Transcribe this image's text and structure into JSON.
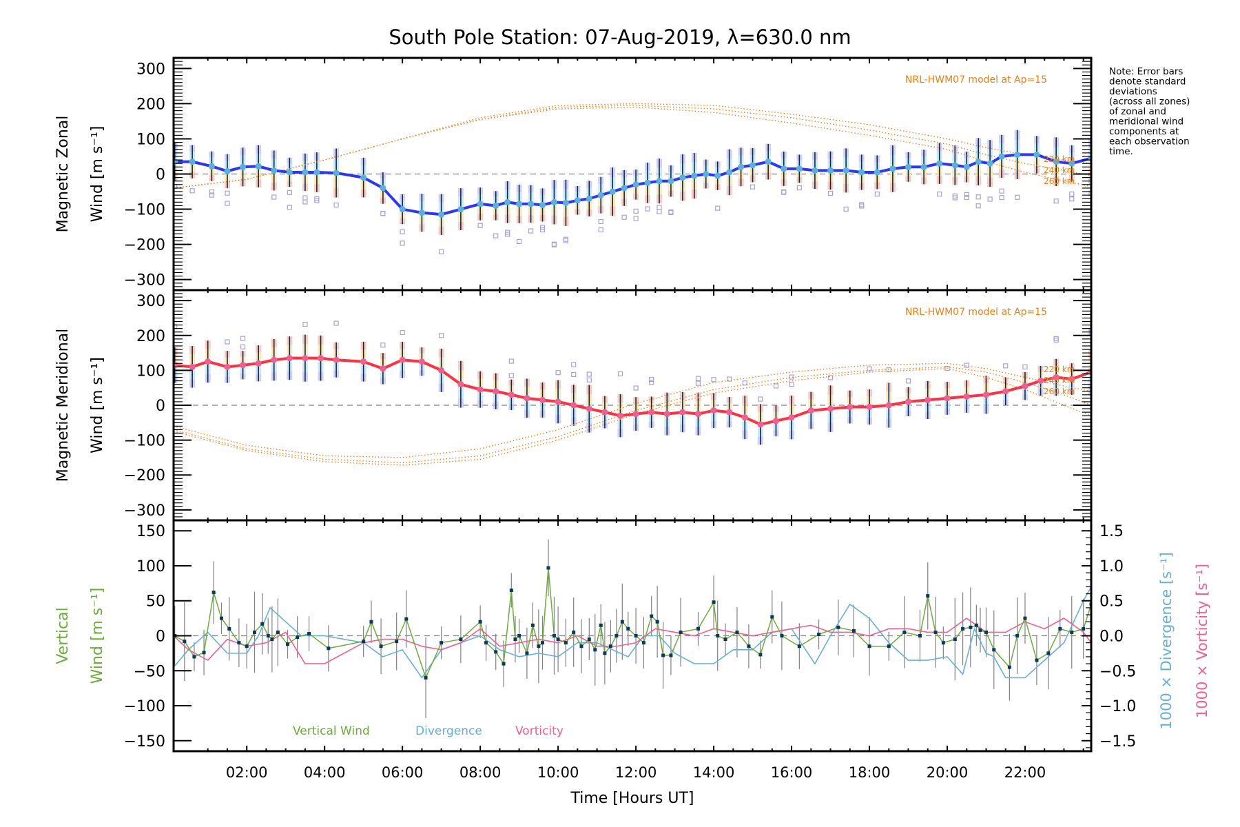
{
  "chart_data": [
    {
      "id": "zonal",
      "type": "line",
      "title": "South Pole Station: 07-Aug-2019, λ=630.0 nm",
      "ylabel_line1": "Magnetic Zonal",
      "ylabel_line2": "Wind [m s⁻¹]",
      "ylim": [
        -330,
        330
      ],
      "yticks": [
        300,
        200,
        100,
        0,
        -100,
        -200,
        -300
      ],
      "ytick_labels": [
        "300",
        "200",
        "100",
        "0",
        "−100",
        "−200",
        "−300"
      ],
      "model_label": "NRL-HWM07 model at Ap=15",
      "altitude_labels": [
        "220 km",
        "240 km",
        "260 km"
      ],
      "series": [
        {
          "name": "Zonal wind (mean)",
          "color": "#2b35ff",
          "x": [
            0.15,
            0.6,
            1.1,
            1.5,
            1.9,
            2.3,
            2.7,
            3.1,
            3.5,
            3.8,
            4.3,
            5.0,
            5.5,
            6.0,
            6.5,
            7.0,
            7.5,
            8.0,
            8.4,
            8.7,
            9.0,
            9.3,
            9.6,
            9.9,
            10.2,
            10.5,
            10.8,
            11.1,
            11.4,
            11.7,
            12.0,
            12.3,
            12.6,
            12.9,
            13.2,
            13.5,
            13.8,
            14.1,
            14.4,
            14.7,
            15.0,
            15.4,
            15.8,
            16.2,
            16.6,
            17.0,
            17.4,
            17.8,
            18.2,
            18.6,
            19.0,
            19.4,
            19.8,
            20.2,
            20.5,
            20.8,
            21.1,
            21.4,
            21.8,
            22.3,
            22.8,
            23.2,
            23.7
          ],
          "y": [
            35,
            35,
            22,
            8,
            20,
            22,
            10,
            5,
            5,
            5,
            3,
            -10,
            -40,
            -100,
            -110,
            -115,
            -100,
            -85,
            -90,
            -80,
            -85,
            -85,
            -88,
            -80,
            -82,
            -75,
            -70,
            -60,
            -50,
            -40,
            -30,
            -25,
            -20,
            -20,
            -10,
            -5,
            0,
            -5,
            5,
            20,
            25,
            35,
            15,
            15,
            10,
            10,
            10,
            5,
            5,
            15,
            20,
            20,
            30,
            25,
            20,
            35,
            30,
            50,
            55,
            55,
            35,
            30,
            45
          ]
        },
        {
          "name": "HWM07 220 km",
          "color": "#f07f10",
          "x": [
            0.12,
            2,
            4,
            6,
            8,
            10,
            12,
            14,
            16,
            18,
            20,
            21,
            22,
            23,
            23.7
          ],
          "y": [
            -40,
            -15,
            40,
            100,
            155,
            185,
            190,
            175,
            145,
            110,
            70,
            35,
            5,
            -20,
            -35
          ]
        },
        {
          "name": "HWM07 240 km",
          "color": "#f07f10",
          "x": [
            0.12,
            2,
            4,
            6,
            8,
            10,
            12,
            14,
            16,
            18,
            20,
            21,
            22,
            23,
            23.7
          ],
          "y": [
            -40,
            -15,
            40,
            100,
            155,
            190,
            195,
            185,
            160,
            125,
            85,
            55,
            30,
            10,
            -5
          ]
        },
        {
          "name": "HWM07 260 km",
          "color": "#f07f10",
          "x": [
            0.12,
            2,
            4,
            6,
            8,
            10,
            12,
            14,
            16,
            18,
            20,
            21,
            22,
            23,
            23.7
          ],
          "y": [
            -40,
            -15,
            40,
            100,
            160,
            195,
            200,
            195,
            170,
            140,
            100,
            75,
            55,
            40,
            30
          ]
        }
      ]
    },
    {
      "id": "meridional",
      "type": "line",
      "ylabel_line1": "Magnetic Meridional",
      "ylabel_line2": "Wind [m s⁻¹]",
      "ylim": [
        -330,
        330
      ],
      "yticks": [
        300,
        200,
        100,
        0,
        -100,
        -200,
        -300
      ],
      "ytick_labels": [
        "300",
        "200",
        "100",
        "0",
        "−100",
        "−200",
        "−300"
      ],
      "model_label": "NRL-HWM07 model at Ap=15",
      "altitude_labels": [
        "220 km",
        "240 km",
        "260 km"
      ],
      "series": [
        {
          "name": "Meridional wind (mean)",
          "color": "#ff3040",
          "x": [
            0.15,
            0.6,
            1.0,
            1.5,
            1.9,
            2.3,
            2.7,
            3.1,
            3.5,
            3.9,
            4.3,
            5.0,
            5.5,
            6.0,
            6.5,
            7.0,
            7.5,
            8.0,
            8.4,
            8.8,
            9.2,
            9.6,
            10.0,
            10.4,
            10.8,
            11.2,
            11.6,
            12.0,
            12.4,
            12.8,
            13.2,
            13.6,
            14.0,
            14.4,
            14.8,
            15.2,
            15.6,
            16.0,
            16.5,
            17.0,
            17.5,
            18.0,
            18.5,
            19.0,
            19.5,
            20.0,
            20.5,
            21.0,
            21.5,
            22.0,
            22.4,
            22.8,
            23.2,
            23.7
          ],
          "y": [
            115,
            110,
            125,
            110,
            115,
            120,
            130,
            135,
            135,
            135,
            130,
            125,
            105,
            130,
            125,
            100,
            60,
            45,
            40,
            30,
            20,
            15,
            10,
            0,
            -10,
            -20,
            -30,
            -25,
            -20,
            -25,
            -20,
            -25,
            -15,
            -20,
            -35,
            -55,
            -45,
            -35,
            -15,
            -10,
            -5,
            -5,
            0,
            10,
            15,
            20,
            25,
            30,
            40,
            55,
            70,
            80,
            75,
            95
          ]
        },
        {
          "name": "HWM07 220 km",
          "color": "#f07f10",
          "x": [
            0.12,
            2,
            4,
            6,
            8,
            10,
            12,
            14,
            16,
            18,
            20,
            21,
            22,
            23,
            23.7
          ],
          "y": [
            -60,
            -115,
            -145,
            -150,
            -125,
            -70,
            5,
            65,
            95,
            115,
            120,
            105,
            80,
            55,
            40
          ]
        },
        {
          "name": "HWM07 240 km",
          "color": "#f07f10",
          "x": [
            0.12,
            2,
            4,
            6,
            8,
            10,
            12,
            14,
            16,
            18,
            20,
            21,
            22,
            23,
            23.7
          ],
          "y": [
            -70,
            -125,
            -155,
            -165,
            -145,
            -90,
            -15,
            45,
            80,
            100,
            110,
            95,
            65,
            30,
            0
          ]
        },
        {
          "name": "HWM07 260 km",
          "color": "#f07f10",
          "x": [
            0.12,
            2,
            4,
            6,
            8,
            10,
            12,
            14,
            16,
            18,
            20,
            21,
            22,
            23,
            23.7
          ],
          "y": [
            -75,
            -130,
            -162,
            -172,
            -155,
            -100,
            -25,
            35,
            70,
            95,
            105,
            80,
            45,
            0,
            -30
          ]
        }
      ]
    },
    {
      "id": "vertical",
      "type": "line",
      "ylabel_line1": "Vertical",
      "ylabel_line2": "Wind [m s⁻¹]",
      "ylabel_color": "#6aae35",
      "ylim": [
        -165,
        165
      ],
      "yticks": [
        150,
        100,
        50,
        0,
        -50,
        -100,
        -150
      ],
      "ytick_labels": [
        "150",
        "100",
        "50",
        "0",
        "−50",
        "−100",
        "−150"
      ],
      "y2lim": [
        -1.65,
        1.65
      ],
      "y2ticks": [
        1.5,
        1.0,
        0.5,
        0.0,
        -0.5,
        -1.0,
        -1.5
      ],
      "y2tick_labels": [
        "1.5",
        "1.0",
        "0.5",
        "0.0",
        "−0.5",
        "−1.0",
        "−1.5"
      ],
      "y2label_divergence": "1000 × Divergence [s⁻¹]",
      "y2label_vorticity": "1000 × Vorticity [s⁻¹]",
      "xlabel": "Time [Hours UT]",
      "xticks": [
        2,
        4,
        6,
        8,
        10,
        12,
        14,
        16,
        18,
        20,
        22
      ],
      "xtick_labels": [
        "02:00",
        "04:00",
        "06:00",
        "08:00",
        "10:00",
        "12:00",
        "14:00",
        "16:00",
        "18:00",
        "20:00",
        "22:00"
      ],
      "xlim": [
        0.12,
        23.7
      ],
      "legend": [
        {
          "label": "Vertical Wind",
          "color": "#6aae35"
        },
        {
          "label": "Divergence",
          "color": "#62b0dc"
        },
        {
          "label": "Vorticity",
          "color": "#f45d93"
        }
      ],
      "series": [
        {
          "name": "Vertical Wind",
          "color": "#6aae35",
          "x": [
            0.15,
            0.4,
            0.65,
            0.9,
            1.15,
            1.35,
            1.55,
            1.8,
            2.0,
            2.2,
            2.4,
            2.55,
            2.65,
            2.8,
            3.05,
            3.3,
            3.6,
            4.1,
            5.0,
            5.2,
            5.45,
            5.85,
            6.1,
            6.6,
            7.0,
            7.5,
            8.0,
            8.15,
            8.4,
            8.6,
            8.8,
            8.9,
            9.0,
            9.2,
            9.35,
            9.5,
            9.6,
            9.75,
            9.9,
            10.0,
            10.2,
            10.4,
            10.6,
            10.8,
            10.95,
            11.1,
            11.2,
            11.35,
            11.5,
            11.65,
            11.8,
            12.0,
            12.2,
            12.4,
            12.55,
            12.7,
            12.9,
            13.15,
            13.6,
            14.0,
            14.1,
            14.3,
            14.6,
            14.9,
            15.2,
            15.5,
            15.75,
            16.2,
            16.7,
            17.2,
            17.6,
            18.0,
            18.5,
            18.9,
            19.3,
            19.5,
            19.7,
            19.9,
            20.2,
            20.4,
            20.6,
            20.75,
            20.85,
            21.0,
            21.2,
            21.6,
            21.8,
            22.0,
            22.3,
            22.6,
            22.9,
            23.2,
            23.5,
            23.7
          ],
          "y": [
            0,
            -8,
            -30,
            -24,
            62,
            25,
            10,
            -10,
            -15,
            5,
            17,
            0,
            -5,
            5,
            -12,
            -2,
            3,
            -18,
            -8,
            20,
            -15,
            -8,
            24,
            -60,
            -10,
            -5,
            20,
            -10,
            -23,
            -40,
            65,
            -5,
            0,
            -25,
            15,
            -15,
            -10,
            97,
            0,
            -5,
            -10,
            5,
            -15,
            -5,
            -20,
            15,
            -25,
            -15,
            0,
            20,
            10,
            0,
            -10,
            28,
            20,
            -28,
            -28,
            5,
            10,
            48,
            0,
            -5,
            5,
            -15,
            -27,
            27,
            0,
            -15,
            2,
            12,
            7,
            -15,
            -15,
            5,
            0,
            57,
            5,
            -10,
            -5,
            10,
            12,
            15,
            8,
            5,
            -20,
            -45,
            0,
            25,
            -35,
            -25,
            10,
            5,
            10,
            45
          ]
        },
        {
          "name": "Divergence",
          "color": "#62b0dc",
          "axis": "right",
          "x": [
            0.12,
            0.5,
            1.0,
            1.5,
            2.0,
            2.3,
            2.6,
            3.0,
            3.4,
            4.0,
            5.0,
            5.5,
            6.0,
            6.5,
            7.0,
            7.5,
            8.0,
            8.5,
            9.0,
            9.5,
            10.0,
            10.5,
            11.0,
            11.4,
            11.8,
            12.2,
            12.6,
            13.0,
            13.5,
            14.0,
            14.5,
            15.0,
            15.5,
            16.0,
            16.3,
            16.6,
            17.0,
            17.5,
            18.0,
            18.5,
            19.0,
            19.5,
            20.0,
            20.4,
            20.7,
            21.0,
            21.2,
            21.5,
            22.0,
            22.5,
            23.0,
            23.5,
            23.7
          ],
          "y": [
            -0.45,
            -0.2,
            0.05,
            -0.25,
            -0.25,
            0.0,
            0.4,
            0.2,
            0.0,
            0.0,
            -0.1,
            -0.3,
            -0.2,
            -0.6,
            -0.2,
            -0.1,
            0.0,
            -0.2,
            -0.3,
            -0.25,
            -0.3,
            -0.1,
            -0.1,
            -0.2,
            -0.3,
            0.0,
            0.0,
            -0.25,
            -0.4,
            -0.4,
            -0.2,
            -0.2,
            0.05,
            0.1,
            -0.15,
            -0.4,
            0.0,
            0.45,
            0.25,
            -0.1,
            -0.35,
            -0.35,
            -0.3,
            -0.55,
            0.1,
            -0.25,
            -0.3,
            -0.6,
            -0.6,
            -0.35,
            -0.1,
            0.5,
            0.7
          ]
        },
        {
          "name": "Vorticity",
          "color": "#f45d93",
          "axis": "right",
          "x": [
            0.12,
            0.5,
            1.0,
            1.5,
            2.0,
            2.5,
            3.0,
            3.5,
            4.0,
            5.0,
            5.5,
            6.0,
            6.5,
            7.0,
            7.5,
            8.0,
            8.5,
            9.0,
            9.5,
            10.0,
            10.5,
            11.0,
            11.5,
            12.0,
            12.5,
            13.0,
            13.5,
            14.0,
            14.5,
            15.0,
            15.5,
            16.0,
            16.5,
            17.0,
            17.5,
            18.0,
            18.5,
            19.0,
            19.5,
            20.0,
            20.5,
            21.0,
            21.5,
            22.0,
            22.5,
            23.0,
            23.5,
            23.7
          ],
          "y": [
            0.0,
            -0.2,
            -0.35,
            -0.05,
            -0.15,
            -0.1,
            0.05,
            -0.4,
            -0.4,
            -0.1,
            -0.05,
            -0.05,
            -0.15,
            -0.2,
            -0.1,
            0.1,
            -0.15,
            -0.1,
            -0.05,
            -0.1,
            0.0,
            -0.15,
            -0.15,
            -0.1,
            0.1,
            0.05,
            0.0,
            0.1,
            0.05,
            0.0,
            0.05,
            0.1,
            0.15,
            0.05,
            0.05,
            0.0,
            0.1,
            0.1,
            0.05,
            0.05,
            0.25,
            0.05,
            0.05,
            0.2,
            0.1,
            0.25,
            0.05,
            -0.1
          ]
        }
      ]
    }
  ],
  "note": {
    "lines": [
      "Note: Error bars",
      "denote standard",
      "deviations",
      "(across all zones)",
      "of zonal and",
      "meridional wind",
      "components at",
      "each observation",
      "time."
    ]
  }
}
